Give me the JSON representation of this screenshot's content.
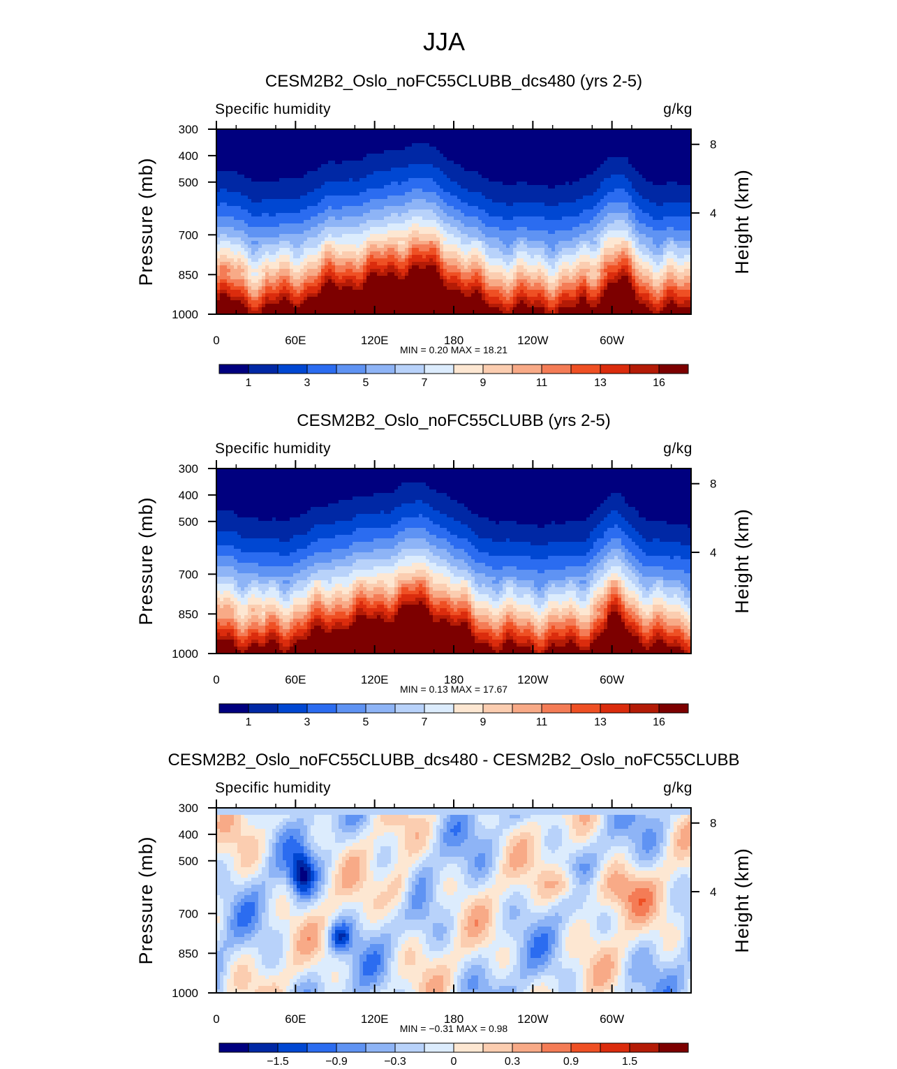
{
  "figure": {
    "title": "JJA"
  },
  "colors": {
    "levels_11_16": [
      "#00007f",
      "#0028a5",
      "#0047d2",
      "#2b6cf0",
      "#5f93f3",
      "#8eb4f6",
      "#b8d2fa",
      "#dcecfd",
      "#fde7d2",
      "#fbcdb0",
      "#f8aa87",
      "#f47c56",
      "#ef5024",
      "#db2c0d",
      "#b41b06",
      "#7d0000"
    ],
    "diff_levels": [
      "#00007f",
      "#0028a5",
      "#0047d2",
      "#2b6cf0",
      "#5f93f3",
      "#8eb4f6",
      "#b8d2fa",
      "#dcecfd",
      "#fde7d2",
      "#fbcdb0",
      "#f8aa87",
      "#f47c56",
      "#ef5024",
      "#db2c0d",
      "#b41b06",
      "#7d0000"
    ]
  },
  "chart_data": [
    {
      "type": "heatmap",
      "title": "CESM2B2_Oslo_noFC55CLUBB_dcs480 (yrs 2-5)",
      "left_label": "Specific humidity",
      "right_label": "g/kg",
      "ylabel": "Pressure (mb)",
      "y2label": "Height (km)",
      "xticks": [
        "0",
        "60E",
        "120E",
        "180",
        "120W",
        "60W"
      ],
      "yticks": [
        "300",
        "400",
        "500",
        "700",
        "850",
        "1000"
      ],
      "y2ticks": [
        "8",
        "4"
      ],
      "stats": "MIN =    0.20   MAX =   18.21",
      "colorbar_labels": [
        "1",
        "3",
        "5",
        "7",
        "9",
        "11",
        "13",
        "16"
      ],
      "min": 0.2,
      "max": 18.21,
      "field": "mean"
    },
    {
      "type": "heatmap",
      "title": "CESM2B2_Oslo_noFC55CLUBB (yrs 2-5)",
      "left_label": "Specific humidity",
      "right_label": "g/kg",
      "ylabel": "Pressure (mb)",
      "y2label": "Height (km)",
      "xticks": [
        "0",
        "60E",
        "120E",
        "180",
        "120W",
        "60W"
      ],
      "yticks": [
        "300",
        "400",
        "500",
        "700",
        "850",
        "1000"
      ],
      "y2ticks": [
        "8",
        "4"
      ],
      "stats": "MIN =    0.13   MAX =   17.67",
      "colorbar_labels": [
        "1",
        "3",
        "5",
        "7",
        "9",
        "11",
        "13",
        "16"
      ],
      "min": 0.13,
      "max": 17.67,
      "field": "mean"
    },
    {
      "type": "heatmap",
      "title": "CESM2B2_Oslo_noFC55CLUBB_dcs480 - CESM2B2_Oslo_noFC55CLUBB",
      "left_label": "Specific humidity",
      "right_label": "g/kg",
      "ylabel": "Pressure (mb)",
      "y2label": "Height (km)",
      "xticks": [
        "0",
        "60E",
        "120E",
        "180",
        "120W",
        "60W"
      ],
      "yticks": [
        "300",
        "400",
        "500",
        "700",
        "850",
        "1000"
      ],
      "y2ticks": [
        "8",
        "4"
      ],
      "stats": "MIN =  −0.31   MAX =    0.98",
      "colorbar_labels": [
        "−1.5",
        "−0.9",
        "−0.3",
        "0",
        "0.3",
        "0.9",
        "1.5"
      ],
      "min": -0.31,
      "max": 0.98,
      "field": "difference"
    }
  ]
}
